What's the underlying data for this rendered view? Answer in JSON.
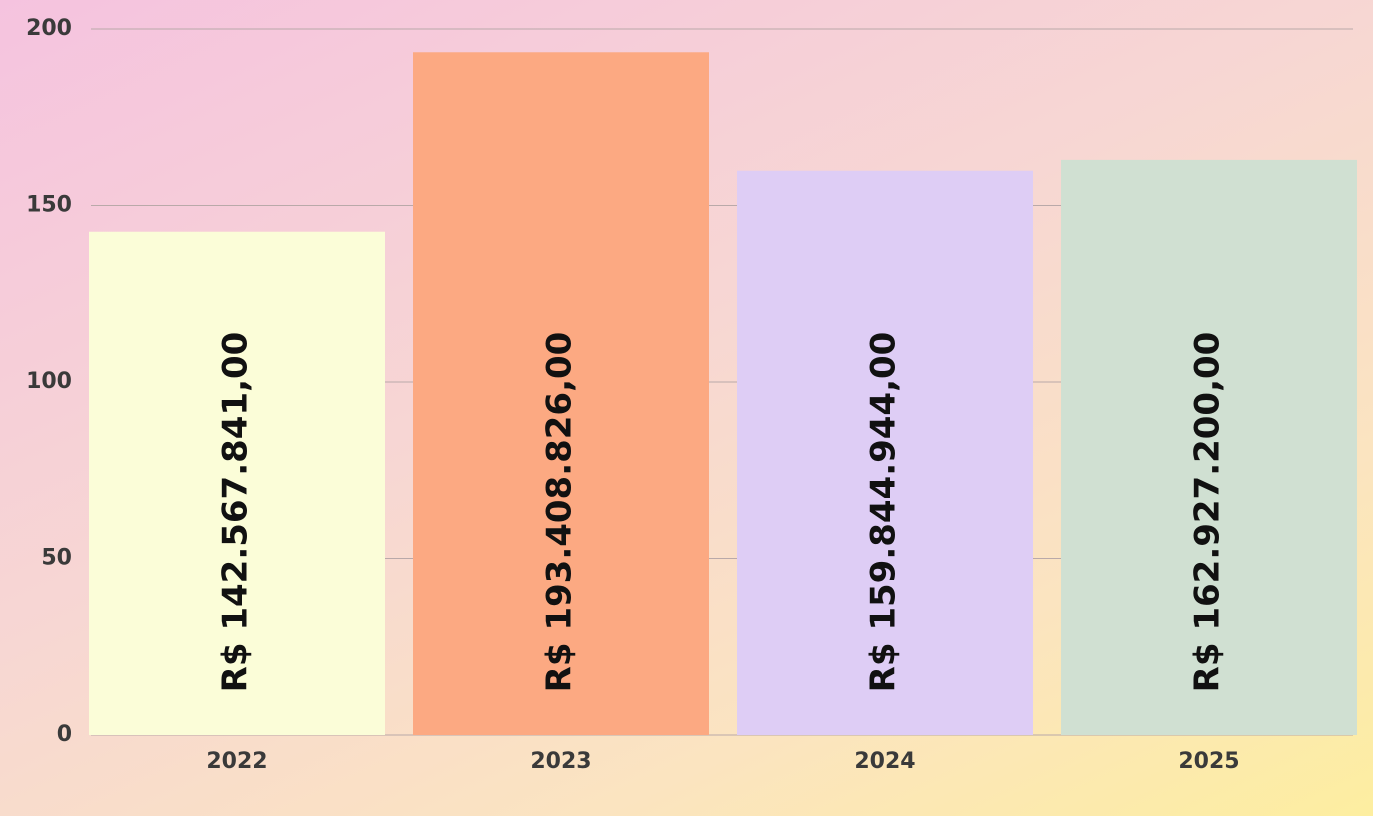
{
  "chart_data": {
    "type": "bar",
    "categories": [
      "2022",
      "2023",
      "2024",
      "2025"
    ],
    "values": [
      142.567841,
      193.408826,
      159.844944,
      162.9272
    ],
    "value_labels": [
      "R$ 142.567.841,00",
      "R$ 193.408.826,00",
      "R$ 159.844.944,00",
      "R$ 162.927.200,00"
    ],
    "colors": [
      "#fbfdd8",
      "#fca982",
      "#decdf5",
      "#d0e0d2"
    ],
    "ylim": [
      0,
      200
    ],
    "yticks": [
      0,
      50,
      100,
      150,
      200
    ],
    "grid": true
  }
}
